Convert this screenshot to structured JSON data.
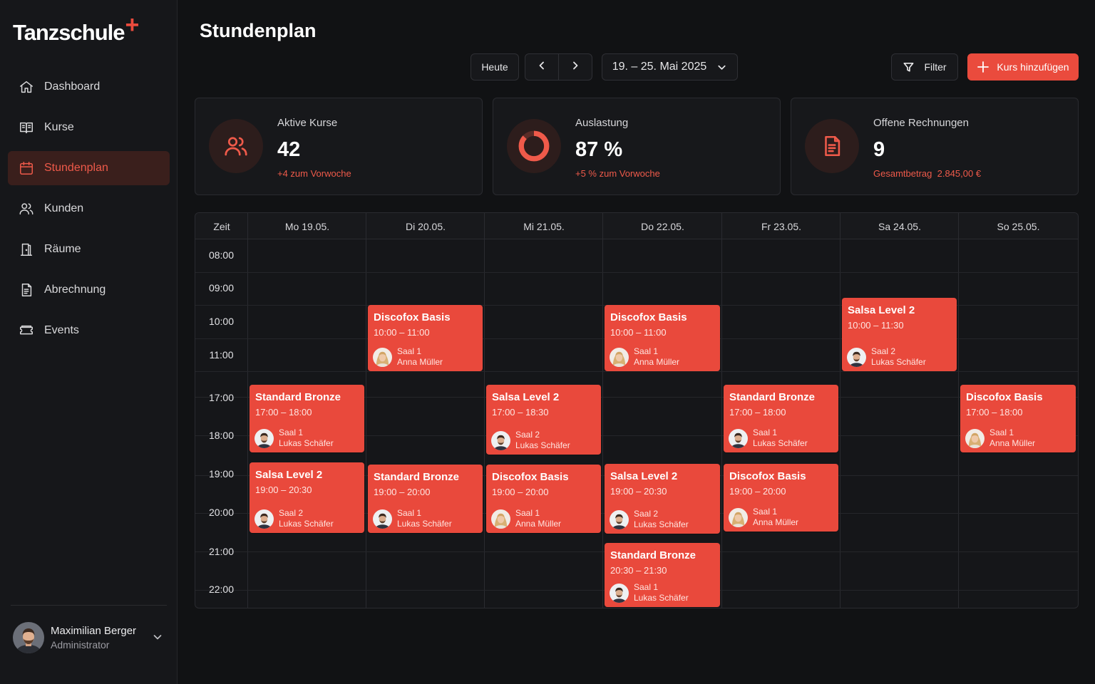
{
  "app": {
    "logo_text": "Tanzschule",
    "logo_mark": "+"
  },
  "colors": {
    "accent": "#ea4b3d",
    "background": "#111214",
    "card": "#17181b"
  },
  "sidebar": {
    "items": [
      {
        "label": "Dashboard",
        "icon": "home-icon"
      },
      {
        "label": "Kurse",
        "icon": "book-icon"
      },
      {
        "label": "Stundenplan",
        "icon": "calendar-icon",
        "active": true
      },
      {
        "label": "Kunden",
        "icon": "users-icon"
      },
      {
        "label": "Räume",
        "icon": "door-icon"
      },
      {
        "label": "Abrechnung",
        "icon": "invoice-icon"
      },
      {
        "label": "Events",
        "icon": "ticket-icon"
      }
    ],
    "user": {
      "name": "Maximilian Berger",
      "role": "Administrator"
    }
  },
  "header": {
    "title": "Stundenplan",
    "today_label": "Heute",
    "date_range": "19. – 25. Mai 2025",
    "filter_label": "Filter",
    "add_label": "Kurs hinzufügen"
  },
  "stats": [
    {
      "label": "Aktive Kurse",
      "value": "42",
      "sub": "+4 zum Vorwoche",
      "icon": "users-icon"
    },
    {
      "label": "Auslastung",
      "value": "87 %",
      "sub": "+5 % zum Vorwoche",
      "icon": "donut-icon",
      "fill": 0.87
    },
    {
      "label": "Offene Rechnungen",
      "value": "9",
      "sub": "Gesamtbetrag  2.845,00 €",
      "icon": "document-icon"
    }
  ],
  "calendar": {
    "time_header": "Zeit",
    "days": [
      "Mo 19.05.",
      "Di 20.05.",
      "Mi 21.05.",
      "Do 22.05.",
      "Fr 23.05.",
      "Sa 24.05.",
      "So 25.05."
    ],
    "hours": [
      "08:00",
      "09:00",
      "10:00",
      "11:00",
      "17:00",
      "18:00",
      "19:00",
      "20:00",
      "21:00",
      "22:00"
    ],
    "events": [
      {
        "title": "Discofox Basis",
        "time": "10:00 – 11:00",
        "room": "Saal 1",
        "teacher": "Anna Müller",
        "avatar": "female"
      },
      {
        "title": "Discofox Basis",
        "time": "10:00 – 11:00",
        "room": "Saal 1",
        "teacher": "Anna Müller",
        "avatar": "female"
      },
      {
        "title": "Salsa Level 2",
        "time": "10:00 – 11:30",
        "room": "Saal 2",
        "teacher": "Lukas Schäfer",
        "avatar": "male"
      },
      {
        "title": "Standard Bronze",
        "time": "17:00 – 18:00",
        "room": "Saal 1",
        "teacher": "Lukas Schäfer",
        "avatar": "male"
      },
      {
        "title": "Salsa Level 2",
        "time": "17:00 – 18:30",
        "room": "Saal 2",
        "teacher": "Lukas Schäfer",
        "avatar": "male"
      },
      {
        "title": "Standard Bronze",
        "time": "17:00 – 18:00",
        "room": "Saal 1",
        "teacher": "Lukas Schäfer",
        "avatar": "male"
      },
      {
        "title": "Discofox Basis",
        "time": "17:00 – 18:00",
        "room": "Saal 1",
        "teacher": "Anna Müller",
        "avatar": "female"
      },
      {
        "title": "Salsa Level 2",
        "time": "19:00 – 20:30",
        "room": "Saal 2",
        "teacher": "Lukas Schäfer",
        "avatar": "male"
      },
      {
        "title": "Standard Bronze",
        "time": "19:00 – 20:00",
        "room": "Saal 1",
        "teacher": "Lukas Schäfer",
        "avatar": "male"
      },
      {
        "title": "Discofox Basis",
        "time": "19:00 – 20:00",
        "room": "Saal 1",
        "teacher": "Anna Müller",
        "avatar": "female"
      },
      {
        "title": "Salsa Level 2",
        "time": "19:00 – 20:30",
        "room": "Saal 2",
        "teacher": "Lukas Schäfer",
        "avatar": "male"
      },
      {
        "title": "Discofox Basis",
        "time": "19:00 – 20:00",
        "room": "Saal 1",
        "teacher": "Anna Müller",
        "avatar": "female"
      },
      {
        "title": "Standard Bronze",
        "time": "20:30 – 21:30",
        "room": "Saal 1",
        "teacher": "Lukas Schäfer",
        "avatar": "male"
      }
    ]
  }
}
